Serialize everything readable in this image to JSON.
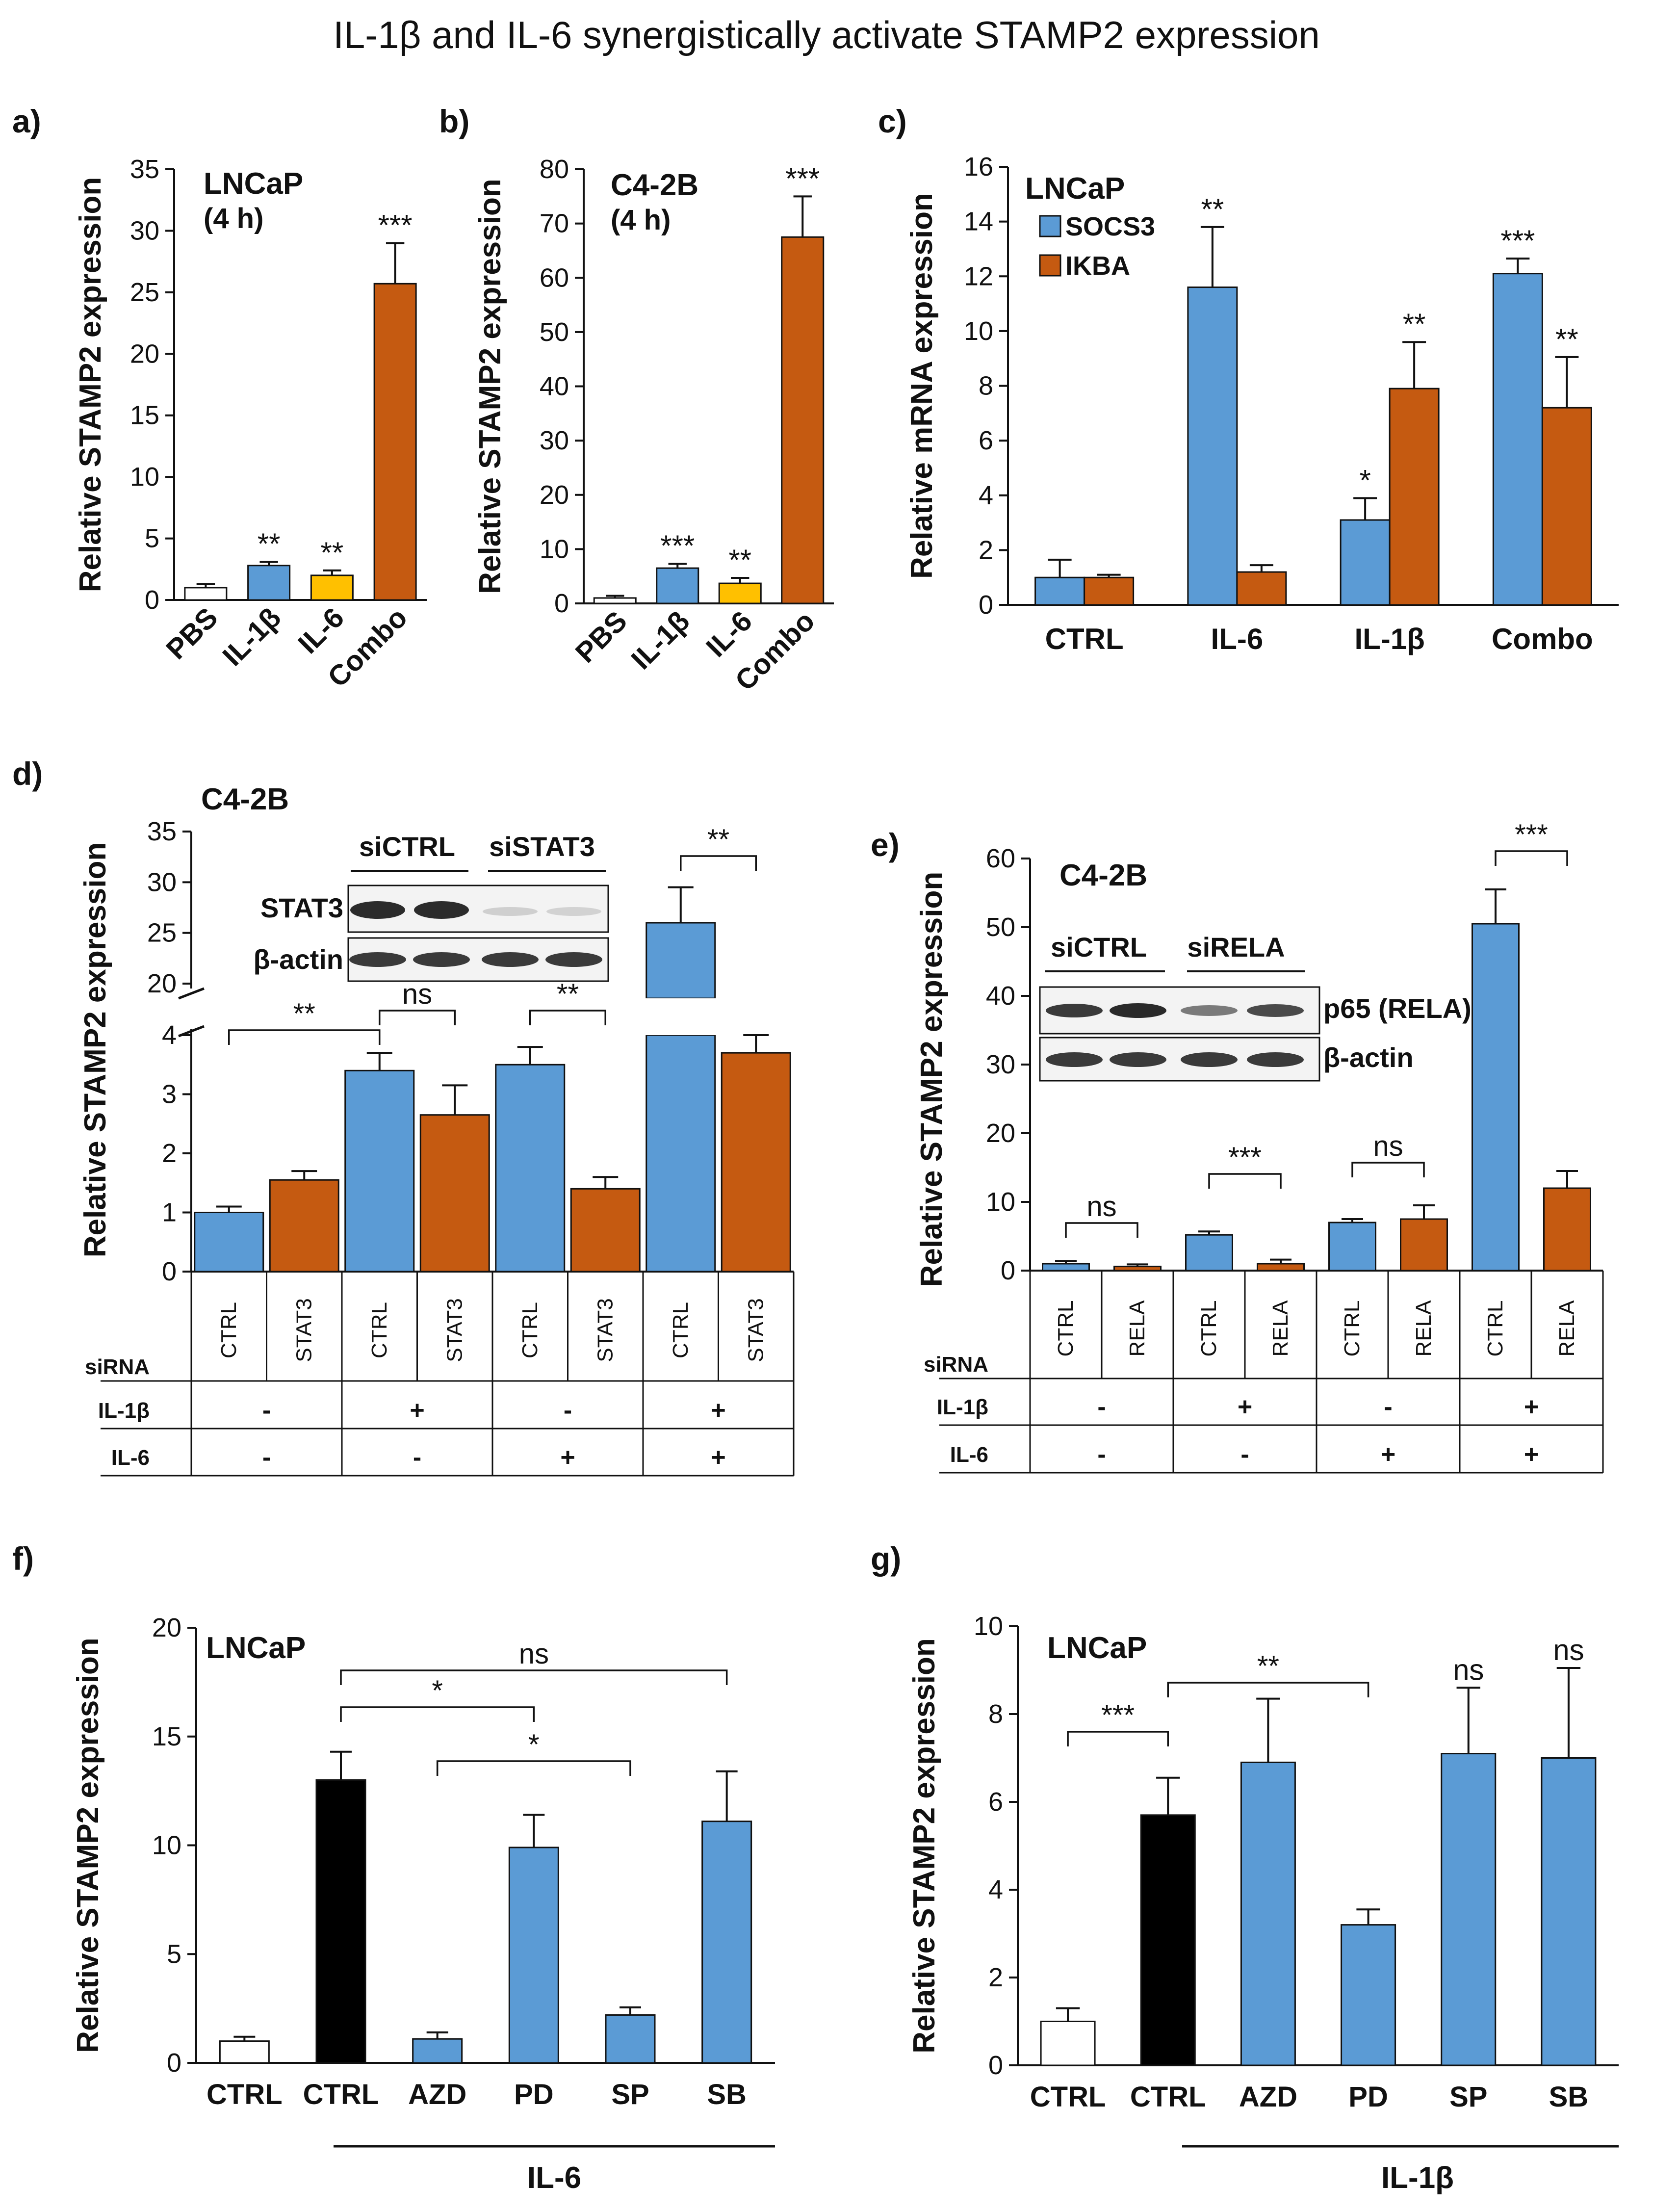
{
  "figure_title": "IL-1β and IL-6 synergistically activate STAMP2 expression",
  "colors": {
    "blue": "#5b9bd5",
    "orange": "#c55a11",
    "yellow": "#ffc000",
    "black": "#000000",
    "white": "#ffffff"
  },
  "chart_data": [
    {
      "id": "a",
      "panel_letter": "a)",
      "type": "bar",
      "title": "LNCaP",
      "subtitle": "(4 h)",
      "ylabel": "Relative STAMP2 expression",
      "ylim": [
        0,
        35
      ],
      "yticks": [
        "0",
        "5",
        "10",
        "15",
        "20",
        "25",
        "30",
        "35"
      ],
      "categories": [
        "PBS",
        "IL-1β",
        "IL-6",
        "Combo"
      ],
      "values": [
        1.0,
        2.8,
        2.0,
        25.7
      ],
      "errors": [
        0.3,
        0.3,
        0.4,
        3.3
      ],
      "bar_colors": [
        "#ffffff",
        "#5b9bd5",
        "#ffc000",
        "#c55a11"
      ],
      "significance": [
        "",
        "**",
        "**",
        "***"
      ]
    },
    {
      "id": "b",
      "panel_letter": "b)",
      "type": "bar",
      "title": "C4-2B",
      "subtitle": "(4 h)",
      "ylabel": "Relative STAMP2 expression",
      "ylim": [
        0,
        80
      ],
      "yticks": [
        "0",
        "10",
        "20",
        "30",
        "40",
        "50",
        "60",
        "70",
        "80"
      ],
      "categories": [
        "PBS",
        "IL-1β",
        "IL-6",
        "Combo"
      ],
      "values": [
        1.0,
        6.5,
        3.7,
        67.5
      ],
      "errors": [
        0.4,
        0.8,
        1.0,
        7.5
      ],
      "bar_colors": [
        "#ffffff",
        "#5b9bd5",
        "#ffc000",
        "#c55a11"
      ],
      "significance": [
        "",
        "***",
        "**",
        "***"
      ]
    },
    {
      "id": "c",
      "panel_letter": "c)",
      "type": "bar",
      "title": "LNCaP",
      "ylabel": "Relative mRNA expression",
      "ylim": [
        0,
        16
      ],
      "yticks": [
        "0",
        "2",
        "4",
        "6",
        "8",
        "10",
        "12",
        "14",
        "16"
      ],
      "categories": [
        "CTRL",
        "IL-6",
        "IL-1β",
        "Combo"
      ],
      "series": [
        {
          "name": "SOCS3",
          "color": "#5b9bd5",
          "values": [
            1.0,
            11.6,
            3.1,
            12.1
          ],
          "errors": [
            0.65,
            2.2,
            0.8,
            0.55
          ],
          "significance": [
            "",
            "**",
            "*",
            "***"
          ]
        },
        {
          "name": "IKBA",
          "color": "#c55a11",
          "values": [
            1.0,
            1.2,
            7.9,
            7.2
          ],
          "errors": [
            0.1,
            0.25,
            1.7,
            1.85
          ],
          "significance": [
            "",
            "",
            "**",
            "**"
          ]
        }
      ],
      "legend_position": "top-left"
    },
    {
      "id": "d",
      "panel_letter": "d)",
      "type": "bar",
      "title": "C4-2B",
      "ylabel": "Relative STAMP2 expression",
      "axis_break": true,
      "lower_range": [
        0,
        4
      ],
      "upper_range": [
        20,
        35
      ],
      "lower_ticks": [
        "0",
        "1",
        "2",
        "3",
        "4"
      ],
      "upper_ticks": [
        "20",
        "25",
        "30",
        "35"
      ],
      "values": [
        1.0,
        1.55,
        3.4,
        2.65,
        3.5,
        1.4,
        26.0,
        3.7
      ],
      "errors": [
        0.1,
        0.15,
        0.3,
        0.5,
        0.3,
        0.2,
        3.5,
        0.3
      ],
      "bar_colors": [
        "#5b9bd5",
        "#c55a11",
        "#5b9bd5",
        "#c55a11",
        "#5b9bd5",
        "#c55a11",
        "#5b9bd5",
        "#c55a11"
      ],
      "table": {
        "siRNA_label": "siRNA",
        "siRNA": [
          "CTRL",
          "STAT3",
          "CTRL",
          "STAT3",
          "CTRL",
          "STAT3",
          "CTRL",
          "STAT3"
        ],
        "il1b_label": "IL-1β",
        "il1b": [
          "-",
          "+",
          "-",
          "+"
        ],
        "il6_label": "IL-6",
        "il6": [
          "-",
          "-",
          "+",
          "+"
        ]
      },
      "brackets": [
        {
          "from": 0,
          "to": 2,
          "text": "**"
        },
        {
          "from": 2,
          "to": 3,
          "text": "ns"
        },
        {
          "from": 4,
          "to": 5,
          "text": "**"
        },
        {
          "from": 6,
          "to": 7,
          "text": "**"
        }
      ],
      "blot": {
        "group_labels": [
          "siCTRL",
          "siSTAT3"
        ],
        "row_labels": [
          "STAT3",
          "β-actin"
        ]
      }
    },
    {
      "id": "e",
      "panel_letter": "e)",
      "type": "bar",
      "title": "C4-2B",
      "ylabel": "Relative STAMP2 expression",
      "ylim": [
        0,
        60
      ],
      "yticks": [
        "0",
        "10",
        "20",
        "30",
        "40",
        "50",
        "60"
      ],
      "values": [
        1.0,
        0.6,
        5.2,
        1.0,
        7.0,
        7.5,
        50.5,
        12.0
      ],
      "errors": [
        0.4,
        0.3,
        0.5,
        0.6,
        0.5,
        2.0,
        5.0,
        2.5
      ],
      "bar_colors": [
        "#5b9bd5",
        "#c55a11",
        "#5b9bd5",
        "#c55a11",
        "#5b9bd5",
        "#c55a11",
        "#5b9bd5",
        "#c55a11"
      ],
      "table": {
        "siRNA_label": "siRNA",
        "siRNA": [
          "CTRL",
          "RELA",
          "CTRL",
          "RELA",
          "CTRL",
          "RELA",
          "CTRL",
          "RELA"
        ],
        "il1b_label": "IL-1β",
        "il1b": [
          "-",
          "+",
          "-",
          "+"
        ],
        "il6_label": "IL-6",
        "il6": [
          "-",
          "-",
          "+",
          "+"
        ]
      },
      "brackets": [
        {
          "from": 0,
          "to": 1,
          "text": "ns"
        },
        {
          "from": 2,
          "to": 3,
          "text": "***"
        },
        {
          "from": 4,
          "to": 5,
          "text": "ns"
        },
        {
          "from": 6,
          "to": 7,
          "text": "***"
        }
      ],
      "blot": {
        "group_labels": [
          "siCTRL",
          "siRELA"
        ],
        "row_labels": [
          "p65 (RELA)",
          "β-actin"
        ]
      }
    },
    {
      "id": "f",
      "panel_letter": "f)",
      "type": "bar",
      "title": "LNCaP",
      "ylabel": "Relative STAMP2 expression",
      "ylim": [
        0,
        20
      ],
      "yticks": [
        "0",
        "5",
        "10",
        "15",
        "20"
      ],
      "categories": [
        "CTRL",
        "CTRL",
        "AZD",
        "PD",
        "SP",
        "SB"
      ],
      "values": [
        1.0,
        13.0,
        1.1,
        9.9,
        2.2,
        11.1
      ],
      "errors": [
        0.2,
        1.3,
        0.3,
        1.5,
        0.35,
        2.3
      ],
      "bar_colors": [
        "#ffffff",
        "#000000",
        "#5b9bd5",
        "#5b9bd5",
        "#5b9bd5",
        "#5b9bd5"
      ],
      "treatment_label": "IL-6",
      "brackets": [
        {
          "from": 1,
          "to": 5,
          "text": "ns"
        },
        {
          "from": 1,
          "to": 3,
          "text": "*"
        },
        {
          "from": 2,
          "to": 4,
          "text": "*"
        }
      ]
    },
    {
      "id": "g",
      "panel_letter": "g)",
      "type": "bar",
      "title": "LNCaP",
      "ylabel": "Relative STAMP2 expression",
      "ylim": [
        0,
        10
      ],
      "yticks": [
        "0",
        "2",
        "4",
        "6",
        "8",
        "10"
      ],
      "categories": [
        "CTRL",
        "CTRL",
        "AZD",
        "PD",
        "SP",
        "SB"
      ],
      "values": [
        1.0,
        5.7,
        6.9,
        3.2,
        7.1,
        7.0
      ],
      "errors": [
        0.3,
        0.85,
        1.45,
        0.35,
        1.5,
        2.05
      ],
      "bar_colors": [
        "#ffffff",
        "#000000",
        "#5b9bd5",
        "#5b9bd5",
        "#5b9bd5",
        "#5b9bd5"
      ],
      "treatment_label": "IL-1β",
      "significance": [
        "",
        "",
        "",
        "",
        "ns",
        "ns"
      ],
      "brackets": [
        {
          "from": 0,
          "to": 1,
          "text": "***"
        },
        {
          "from": 1,
          "to": 3,
          "text": "**"
        }
      ]
    }
  ]
}
